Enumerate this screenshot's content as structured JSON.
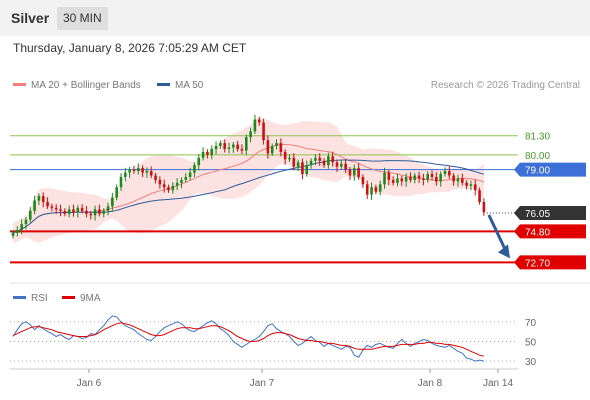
{
  "header": {
    "title": "Silver",
    "timeframe": "30 MIN",
    "timestamp": "Thursday, January 8, 2026 7:05:29 AM CET"
  },
  "legend": {
    "items": [
      {
        "label": "MA 20 + Bollinger Bands",
        "color": "#f08080"
      },
      {
        "label": "MA 50",
        "color": "#2e5b9a"
      }
    ],
    "credit": "Research © 2026 Trading Central"
  },
  "rsi_legend": {
    "items": [
      {
        "label": "RSI",
        "color": "#4472c4"
      },
      {
        "label": "9MA",
        "color": "#e00000"
      }
    ]
  },
  "colors": {
    "up_candle": "#1a8a1a",
    "down_candle": "#cc1111",
    "support": "#e00000",
    "resistance": "#8bc34a",
    "pivot": "#3d6fd8",
    "bands": "#fde2e2",
    "forecast_arrow": "#2e5b9a"
  },
  "chart_data": [
    {
      "type": "candlestick",
      "title": "Silver",
      "timeframe": "30 MIN",
      "ylim": [
        71.5,
        84.0
      ],
      "x_tick_labels": [
        "Jan 6",
        "Jan 7",
        "Jan 8",
        "Jan 14"
      ],
      "closes": [
        74.7,
        74.9,
        75.3,
        75.6,
        76.2,
        76.9,
        77.2,
        76.8,
        76.5,
        76.4,
        76.3,
        76.2,
        76.0,
        76.3,
        76.1,
        76.4,
        76.2,
        76.0,
        75.9,
        76.3,
        76.0,
        76.2,
        76.5,
        77.1,
        77.8,
        78.5,
        78.8,
        79.0,
        78.9,
        79.1,
        78.8,
        78.9,
        78.6,
        78.3,
        78.0,
        77.8,
        77.6,
        77.9,
        78.1,
        78.3,
        78.5,
        78.8,
        79.3,
        79.8,
        80.2,
        80.0,
        80.4,
        80.6,
        80.8,
        80.4,
        80.5,
        80.7,
        80.4,
        80.3,
        81.2,
        81.6,
        82.4,
        82.2,
        81.0,
        80.1,
        80.6,
        80.8,
        80.2,
        79.7,
        79.8,
        79.2,
        79.5,
        78.7,
        79.3,
        79.6,
        79.8,
        79.6,
        79.3,
        79.9,
        79.5,
        79.2,
        79.4,
        79.0,
        78.6,
        79.1,
        78.5,
        78.0,
        77.3,
        77.8,
        77.5,
        78.0,
        78.8,
        78.3,
        78.1,
        78.4,
        78.2,
        78.5,
        78.3,
        78.6,
        78.4,
        78.3,
        78.7,
        78.5,
        78.2,
        78.7,
        78.9,
        78.6,
        78.2,
        78.4,
        78.1,
        77.9,
        78.0,
        77.6,
        76.8,
        76.1
      ],
      "levels": [
        {
          "label": "81.30",
          "value": 81.3,
          "kind": "resistance"
        },
        {
          "label": "80.00",
          "value": 80.0,
          "kind": "resistance"
        },
        {
          "label": "79.00",
          "value": 79.0,
          "kind": "pivot"
        },
        {
          "label": "76.05",
          "value": 76.05,
          "kind": "last"
        },
        {
          "label": "74.80",
          "value": 74.8,
          "kind": "support"
        },
        {
          "label": "72.70",
          "value": 72.7,
          "kind": "support"
        }
      ],
      "forecast": {
        "from": 76.05,
        "to": 72.7
      },
      "series": [
        {
          "name": "MA 20 + Bollinger Bands"
        },
        {
          "name": "MA 50"
        }
      ]
    },
    {
      "type": "line",
      "ylim": [
        25,
        80
      ],
      "y_ticks": [
        "70",
        "50",
        "30"
      ],
      "series": [
        {
          "name": "RSI",
          "values": [
            55,
            62,
            68,
            70,
            67,
            62,
            66,
            63,
            60,
            58,
            55,
            57,
            54,
            52,
            56,
            55,
            53,
            54,
            58,
            57,
            62,
            66,
            72,
            76,
            75,
            70,
            66,
            64,
            62,
            58,
            55,
            52,
            51,
            55,
            60,
            64,
            66,
            68,
            70,
            68,
            64,
            61,
            60,
            63,
            66,
            69,
            71,
            68,
            63,
            60,
            56,
            50,
            47,
            44,
            47,
            50,
            52,
            55,
            60,
            66,
            68,
            63,
            60,
            58,
            55,
            50,
            46,
            48,
            52,
            55,
            51,
            49,
            45,
            48,
            46,
            44,
            42,
            45,
            44,
            36,
            34,
            41,
            46,
            44,
            47,
            48,
            46,
            44,
            43,
            48,
            52,
            48,
            45,
            48,
            50,
            52,
            51,
            48,
            46,
            45,
            44,
            46,
            43,
            40,
            38,
            33,
            32,
            30,
            31,
            30
          ]
        },
        {
          "name": "9MA",
          "values": [
            56,
            58,
            60,
            62,
            64,
            65,
            65,
            64,
            63,
            62,
            60,
            59,
            58,
            57,
            56,
            55,
            55,
            55,
            56,
            57,
            59,
            62,
            64,
            66,
            68,
            69,
            68,
            67,
            65,
            63,
            61,
            59,
            57,
            56,
            56,
            57,
            59,
            61,
            63,
            64,
            64,
            64,
            63,
            63,
            64,
            65,
            66,
            66,
            65,
            63,
            61,
            58,
            55,
            53,
            51,
            50,
            50,
            51,
            53,
            56,
            58,
            59,
            59,
            58,
            57,
            55,
            53,
            52,
            51,
            51,
            50,
            50,
            49,
            48,
            48,
            47,
            46,
            46,
            45,
            43,
            42,
            42,
            42,
            42,
            43,
            44,
            45,
            45,
            45,
            46,
            47,
            47,
            47,
            47,
            48,
            48,
            49,
            49,
            48,
            48,
            47,
            47,
            46,
            45,
            44,
            42,
            40,
            38,
            36,
            35
          ]
        }
      ]
    }
  ]
}
